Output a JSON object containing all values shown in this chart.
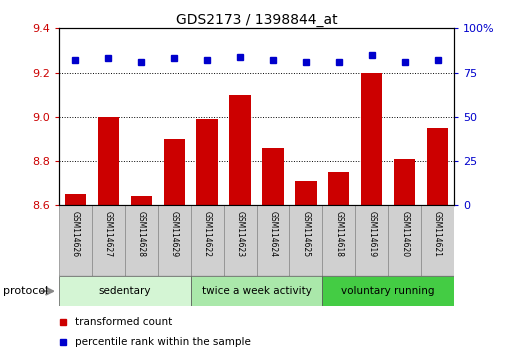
{
  "title": "GDS2173 / 1398844_at",
  "samples": [
    "GSM114626",
    "GSM114627",
    "GSM114628",
    "GSM114629",
    "GSM114622",
    "GSM114623",
    "GSM114624",
    "GSM114625",
    "GSM114618",
    "GSM114619",
    "GSM114620",
    "GSM114621"
  ],
  "bar_values": [
    8.65,
    9.0,
    8.64,
    8.9,
    8.99,
    9.1,
    8.86,
    8.71,
    8.75,
    9.2,
    8.81,
    8.95
  ],
  "dot_values": [
    82,
    83,
    81,
    83,
    82,
    84,
    82,
    81,
    81,
    85,
    81,
    82
  ],
  "bar_color": "#cc0000",
  "dot_color": "#0000cc",
  "ylim_left": [
    8.6,
    9.4
  ],
  "ylim_right": [
    0,
    100
  ],
  "yticks_left": [
    8.6,
    8.8,
    9.0,
    9.2,
    9.4
  ],
  "yticks_right": [
    0,
    25,
    50,
    75,
    100
  ],
  "group_colors": [
    "#d4f5d4",
    "#aae8aa",
    "#44cc44"
  ],
  "group_labels": [
    "sedentary",
    "twice a week activity",
    "voluntary running"
  ],
  "group_starts": [
    0,
    4,
    8
  ],
  "group_ends": [
    4,
    8,
    12
  ],
  "protocol_label": "protocol",
  "legend_bar_label": "transformed count",
  "legend_dot_label": "percentile rank within the sample",
  "bar_color_legend": "#cc0000",
  "dot_color_legend": "#0000cc"
}
